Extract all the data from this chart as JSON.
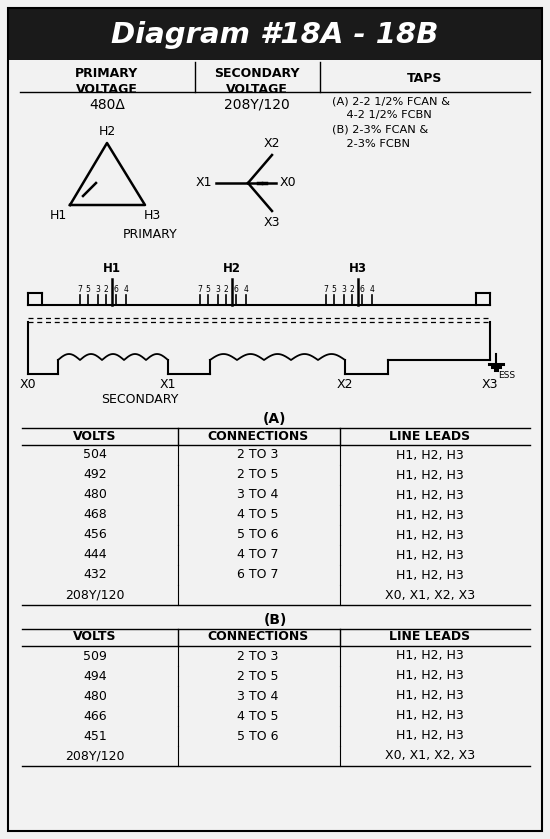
{
  "title": "Diagram #18A - 18B",
  "title_bg": "#1a1a1a",
  "title_color": "#ffffff",
  "primary_voltage": "480Δ",
  "secondary_voltage": "208Y/120",
  "taps_text": "(A) 2-2 1/2% FCAN &\n    4-2 1/2% FCBN\n(B) 2-3% FCAN &\n    2-3% FCBN",
  "table_A_label": "(A)",
  "table_A_headers": [
    "VOLTS",
    "CONNECTIONS",
    "LINE LEADS"
  ],
  "table_A_rows": [
    [
      "504",
      "2 TO 3",
      "H1, H2, H3"
    ],
    [
      "492",
      "2 TO 5",
      "H1, H2, H3"
    ],
    [
      "480",
      "3 TO 4",
      "H1, H2, H3"
    ],
    [
      "468",
      "4 TO 5",
      "H1, H2, H3"
    ],
    [
      "456",
      "5 TO 6",
      "H1, H2, H3"
    ],
    [
      "444",
      "4 TO 7",
      "H1, H2, H3"
    ],
    [
      "432",
      "6 TO 7",
      "H1, H2, H3"
    ],
    [
      "208Y/120",
      "",
      "X0, X1, X2, X3"
    ]
  ],
  "table_B_label": "(B)",
  "table_B_headers": [
    "VOLTS",
    "CONNECTIONS",
    "LINE LEADS"
  ],
  "table_B_rows": [
    [
      "509",
      "2 TO 3",
      "H1, H2, H3"
    ],
    [
      "494",
      "2 TO 5",
      "H1, H2, H3"
    ],
    [
      "480",
      "3 TO 4",
      "H1, H2, H3"
    ],
    [
      "466",
      "4 TO 5",
      "H1, H2, H3"
    ],
    [
      "451",
      "5 TO 6",
      "H1, H2, H3"
    ],
    [
      "208Y/120",
      "",
      "X0, X1, X2, X3"
    ]
  ],
  "bg_color": "#f2f2f2",
  "border_color": "#000000"
}
